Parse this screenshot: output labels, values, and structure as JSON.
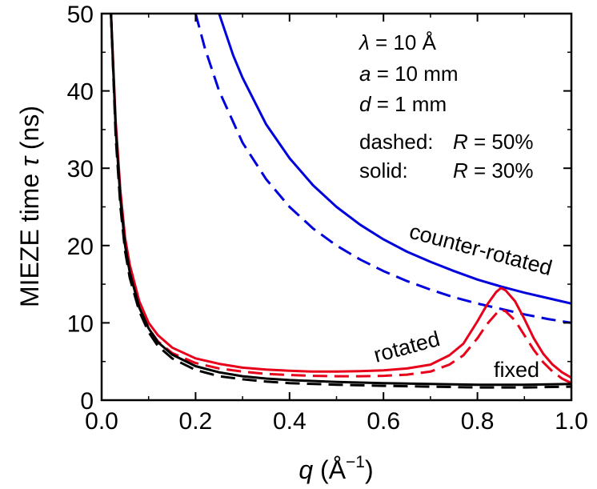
{
  "chart_data": {
    "type": "line",
    "title": "",
    "xlabel": {
      "symbol": "q",
      "open": " (",
      "unit": "Å",
      "exponent": "−1",
      "close": ")"
    },
    "ylabel": {
      "text": "MIEZE time ",
      "symbol": "τ",
      "unit": " (ns)"
    },
    "xlim": [
      0.0,
      1.0
    ],
    "ylim": [
      0,
      50
    ],
    "xticks": [
      "0.0",
      "0.2",
      "0.4",
      "0.6",
      "0.8",
      "1.0"
    ],
    "yticks": [
      "0",
      "10",
      "20",
      "30",
      "40",
      "50"
    ],
    "grid": false,
    "annotations": {
      "params": [
        {
          "symbol": "λ",
          "rest": " = 10 Å"
        },
        {
          "symbol": "a",
          "rest": " = 10 mm"
        },
        {
          "symbol": "d",
          "rest": " = 1 mm"
        }
      ],
      "legend": [
        {
          "prefix": "dashed:",
          "symbol": "R",
          "rest": " = 50%"
        },
        {
          "prefix": "solid:",
          "symbol": "R",
          "rest": " = 30%"
        }
      ]
    },
    "curve_labels": {
      "counter_rotated": "counter-rotated",
      "rotated": "rotated",
      "fixed": "fixed"
    },
    "series": [
      {
        "name": "counter-rotated R=30%",
        "group": "counter-rotated",
        "style": "solid",
        "color": "#0000dd",
        "x": [
          0.25,
          0.28,
          0.3,
          0.35,
          0.4,
          0.45,
          0.5,
          0.55,
          0.6,
          0.65,
          0.7,
          0.75,
          0.8,
          0.85,
          0.9,
          0.95,
          1.0
        ],
        "y": [
          50.0,
          44.6,
          41.7,
          35.7,
          31.3,
          27.8,
          25.0,
          22.7,
          20.8,
          19.2,
          17.9,
          16.7,
          15.6,
          14.7,
          13.9,
          13.2,
          12.5
        ]
      },
      {
        "name": "counter-rotated R=50%",
        "group": "counter-rotated",
        "style": "dashed",
        "color": "#0000dd",
        "x": [
          0.2,
          0.22,
          0.25,
          0.3,
          0.35,
          0.4,
          0.45,
          0.5,
          0.55,
          0.6,
          0.65,
          0.7,
          0.75,
          0.8,
          0.85,
          0.9,
          0.95,
          1.0
        ],
        "y": [
          50.0,
          45.5,
          40.0,
          33.3,
          28.6,
          25.0,
          22.2,
          20.0,
          18.2,
          16.7,
          15.4,
          14.3,
          13.3,
          12.5,
          11.8,
          11.1,
          10.5,
          10.0
        ]
      },
      {
        "name": "rotated R=30%",
        "group": "rotated",
        "style": "solid",
        "color": "#e8001a",
        "x": [
          0.02,
          0.03,
          0.04,
          0.05,
          0.06,
          0.08,
          0.1,
          0.12,
          0.15,
          0.2,
          0.25,
          0.3,
          0.35,
          0.4,
          0.45,
          0.5,
          0.55,
          0.6,
          0.65,
          0.7,
          0.74,
          0.77,
          0.8,
          0.82,
          0.84,
          0.85,
          0.86,
          0.88,
          0.9,
          0.92,
          0.94,
          0.96,
          0.98,
          1.0
        ],
        "y": [
          50.0,
          36.0,
          27.0,
          21.0,
          17.5,
          12.8,
          10.0,
          8.4,
          6.8,
          5.4,
          4.7,
          4.2,
          3.95,
          3.8,
          3.7,
          3.7,
          3.75,
          3.85,
          4.1,
          4.6,
          5.8,
          7.3,
          10.2,
          12.3,
          14.0,
          14.5,
          14.2,
          12.8,
          10.5,
          8.0,
          6.0,
          4.6,
          3.6,
          2.9
        ]
      },
      {
        "name": "rotated R=50%",
        "group": "rotated",
        "style": "dashed",
        "color": "#e8001a",
        "x": [
          0.02,
          0.03,
          0.04,
          0.05,
          0.06,
          0.08,
          0.1,
          0.12,
          0.15,
          0.2,
          0.25,
          0.3,
          0.35,
          0.4,
          0.45,
          0.5,
          0.55,
          0.6,
          0.65,
          0.7,
          0.74,
          0.77,
          0.8,
          0.82,
          0.84,
          0.85,
          0.86,
          0.88,
          0.9,
          0.92,
          0.94,
          0.96,
          0.98,
          1.0
        ],
        "y": [
          50.0,
          35.0,
          26.0,
          20.0,
          16.5,
          12.0,
          9.3,
          7.6,
          6.1,
          4.8,
          4.1,
          3.7,
          3.4,
          3.25,
          3.15,
          3.1,
          3.1,
          3.15,
          3.3,
          3.7,
          4.6,
          5.8,
          8.0,
          9.8,
          11.2,
          11.7,
          11.5,
          10.3,
          8.4,
          6.5,
          4.9,
          3.7,
          2.8,
          2.2
        ]
      },
      {
        "name": "fixed R=30%",
        "group": "fixed",
        "style": "solid",
        "color": "#000000",
        "x": [
          0.02,
          0.03,
          0.04,
          0.05,
          0.06,
          0.08,
          0.1,
          0.12,
          0.15,
          0.2,
          0.25,
          0.3,
          0.35,
          0.4,
          0.5,
          0.6,
          0.7,
          0.8,
          0.9,
          1.0
        ],
        "y": [
          50.0,
          35.0,
          26.0,
          20.0,
          16.5,
          12.0,
          9.3,
          7.5,
          5.9,
          4.4,
          3.6,
          3.1,
          2.8,
          2.6,
          2.35,
          2.2,
          2.1,
          2.0,
          2.0,
          2.1
        ]
      },
      {
        "name": "fixed R=50%",
        "group": "fixed",
        "style": "dashed",
        "color": "#000000",
        "x": [
          0.02,
          0.03,
          0.04,
          0.05,
          0.06,
          0.08,
          0.1,
          0.12,
          0.15,
          0.2,
          0.25,
          0.3,
          0.35,
          0.4,
          0.5,
          0.6,
          0.7,
          0.8,
          0.9,
          1.0
        ],
        "y": [
          50.0,
          34.0,
          25.0,
          19.3,
          15.8,
          11.5,
          8.8,
          7.0,
          5.4,
          3.9,
          3.1,
          2.7,
          2.4,
          2.2,
          2.0,
          1.85,
          1.75,
          1.65,
          1.65,
          1.75
        ]
      }
    ]
  }
}
